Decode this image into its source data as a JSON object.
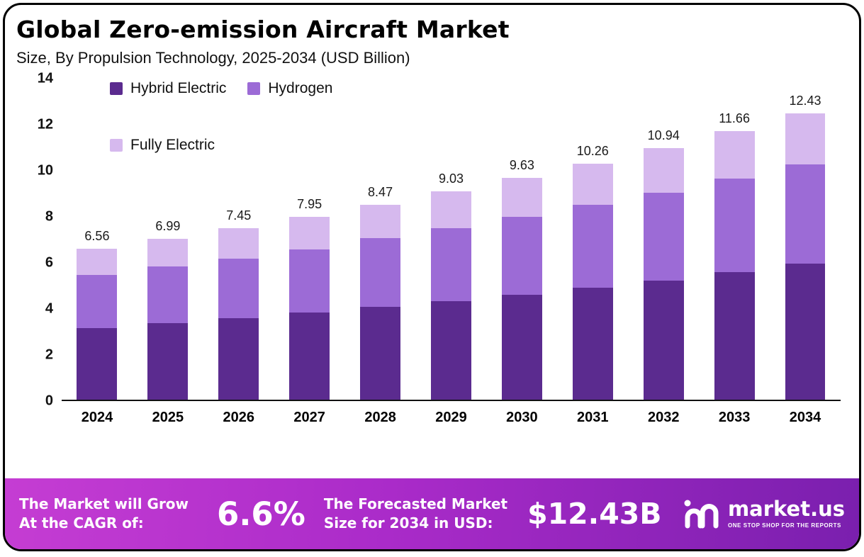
{
  "header": {
    "title": "Global Zero-emission Aircraft Market",
    "subtitle": "Size, By Propulsion Technology, 2025-2034 (USD Billion)"
  },
  "chart_data": {
    "type": "bar",
    "stacked": true,
    "title": "Global Zero-emission Aircraft Market Size, By Propulsion Technology, 2025-2034 (USD Billion)",
    "categories": [
      "2024",
      "2025",
      "2026",
      "2027",
      "2028",
      "2029",
      "2030",
      "2031",
      "2032",
      "2033",
      "2034"
    ],
    "series": [
      {
        "name": "Hybrid Electric",
        "color": "#5b2b8f",
        "legend_row": 1,
        "values": [
          3.1,
          3.33,
          3.55,
          3.79,
          4.03,
          4.29,
          4.56,
          4.86,
          5.18,
          5.53,
          5.9
        ]
      },
      {
        "name": "Hydrogen",
        "color": "#9c6bd6",
        "legend_row": 1,
        "values": [
          2.3,
          2.44,
          2.57,
          2.72,
          2.97,
          3.16,
          3.39,
          3.59,
          3.82,
          4.07,
          4.3
        ]
      },
      {
        "name": "Fully Electric",
        "color": "#d6b9ee",
        "legend_row": 2,
        "values": [
          1.16,
          1.22,
          1.33,
          1.44,
          1.47,
          1.58,
          1.68,
          1.81,
          1.94,
          2.06,
          2.23
        ]
      }
    ],
    "totals": [
      "6.56",
      "6.99",
      "7.45",
      "7.95",
      "8.47",
      "9.03",
      "9.63",
      "10.26",
      "10.94",
      "11.66",
      "12.43"
    ],
    "ylim": [
      0,
      14
    ],
    "yticks": [
      "0",
      "2",
      "4",
      "6",
      "8",
      "10",
      "12",
      "14"
    ],
    "grid": false,
    "legend_position": "top-left"
  },
  "footer": {
    "cagr_label_line1": "The Market will Grow",
    "cagr_label_line2": "At the CAGR of:",
    "cagr_value": "6.6%",
    "forecast_label_line1": "The Forecasted Market",
    "forecast_label_line2": "Size for 2034 in USD:",
    "forecast_value": "$12.43B",
    "brand_name": "market.us",
    "brand_tagline": "ONE STOP SHOP FOR THE REPORTS",
    "banner_gradient": [
      "#c53dd3",
      "#aa2bc9",
      "#7a1fae"
    ]
  }
}
